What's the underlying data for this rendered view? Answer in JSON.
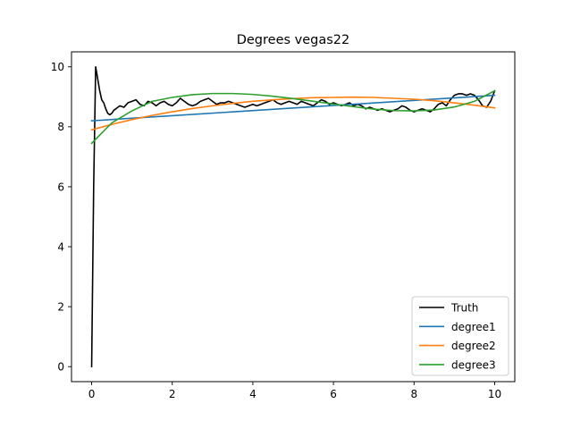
{
  "chart_data": {
    "type": "line",
    "title": "Degrees vegas22",
    "xlabel": "",
    "ylabel": "",
    "xlim": [
      -0.5,
      10.5
    ],
    "ylim": [
      -0.5,
      10.5
    ],
    "xticks": [
      0,
      2,
      4,
      6,
      8,
      10
    ],
    "yticks": [
      0,
      2,
      4,
      6,
      8,
      10
    ],
    "grid": false,
    "legend_position": "lower-right",
    "series": [
      {
        "name": "Truth",
        "color": "#000000",
        "x": [
          0,
          0.05,
          0.1,
          0.15,
          0.2,
          0.25,
          0.3,
          0.35,
          0.4,
          0.45,
          0.5,
          0.55,
          0.6,
          0.7,
          0.8,
          0.9,
          1.0,
          1.1,
          1.2,
          1.3,
          1.4,
          1.5,
          1.6,
          1.7,
          1.8,
          1.9,
          2.0,
          2.1,
          2.2,
          2.3,
          2.4,
          2.5,
          2.6,
          2.7,
          2.8,
          2.9,
          3.0,
          3.1,
          3.2,
          3.3,
          3.4,
          3.5,
          3.6,
          3.7,
          3.8,
          3.9,
          4.0,
          4.1,
          4.2,
          4.3,
          4.4,
          4.5,
          4.6,
          4.7,
          4.8,
          4.9,
          5.0,
          5.1,
          5.2,
          5.3,
          5.4,
          5.5,
          5.6,
          5.7,
          5.8,
          5.9,
          6.0,
          6.1,
          6.2,
          6.3,
          6.4,
          6.5,
          6.6,
          6.7,
          6.8,
          6.9,
          7.0,
          7.1,
          7.2,
          7.3,
          7.4,
          7.5,
          7.6,
          7.7,
          7.8,
          7.9,
          8.0,
          8.1,
          8.2,
          8.3,
          8.4,
          8.5,
          8.6,
          8.7,
          8.8,
          8.9,
          9.0,
          9.1,
          9.2,
          9.3,
          9.4,
          9.5,
          9.6,
          9.7,
          9.8,
          9.9,
          10.0
        ],
        "y": [
          0.0,
          6.0,
          10.0,
          9.6,
          9.2,
          8.9,
          8.8,
          8.6,
          8.45,
          8.4,
          8.45,
          8.55,
          8.6,
          8.7,
          8.65,
          8.8,
          8.85,
          8.9,
          8.75,
          8.7,
          8.85,
          8.8,
          8.7,
          8.8,
          8.85,
          8.75,
          8.7,
          8.8,
          8.95,
          8.85,
          8.75,
          8.7,
          8.75,
          8.85,
          8.9,
          8.95,
          8.85,
          8.75,
          8.8,
          8.8,
          8.85,
          8.8,
          8.75,
          8.7,
          8.65,
          8.7,
          8.75,
          8.7,
          8.75,
          8.8,
          8.85,
          8.9,
          8.8,
          8.75,
          8.8,
          8.85,
          8.8,
          8.75,
          8.85,
          8.8,
          8.75,
          8.7,
          8.8,
          8.9,
          8.85,
          8.75,
          8.8,
          8.75,
          8.7,
          8.75,
          8.8,
          8.7,
          8.75,
          8.7,
          8.6,
          8.65,
          8.6,
          8.55,
          8.6,
          8.55,
          8.5,
          8.55,
          8.6,
          8.7,
          8.65,
          8.55,
          8.5,
          8.55,
          8.6,
          8.55,
          8.5,
          8.6,
          8.75,
          8.8,
          8.7,
          8.9,
          9.05,
          9.1,
          9.1,
          9.05,
          9.1,
          9.05,
          8.9,
          8.7,
          8.65,
          8.85,
          9.2
        ]
      },
      {
        "name": "degree1",
        "color": "#1f77b4",
        "x": [
          0,
          10
        ],
        "y": [
          8.2,
          9.05
        ]
      },
      {
        "name": "degree2",
        "color": "#ff7f0e",
        "x": [
          0,
          0.5,
          1,
          1.5,
          2,
          2.5,
          3,
          3.5,
          4,
          4.5,
          5,
          5.5,
          6,
          6.5,
          7,
          7.5,
          8,
          8.5,
          9,
          9.5,
          10
        ],
        "y": [
          7.9,
          8.08,
          8.24,
          8.38,
          8.5,
          8.61,
          8.7,
          8.78,
          8.85,
          8.9,
          8.94,
          8.97,
          8.98,
          8.99,
          8.98,
          8.95,
          8.92,
          8.87,
          8.8,
          8.72,
          8.63
        ]
      },
      {
        "name": "degree3",
        "color": "#2ca02c",
        "x": [
          0,
          0.5,
          1,
          1.5,
          2,
          2.5,
          3,
          3.5,
          4,
          4.5,
          5,
          5.5,
          6,
          6.5,
          7,
          7.5,
          8,
          8.5,
          9,
          9.5,
          10
        ],
        "y": [
          7.45,
          8.13,
          8.53,
          8.85,
          8.98,
          9.07,
          9.11,
          9.11,
          9.08,
          9.02,
          8.94,
          8.85,
          8.76,
          8.67,
          8.59,
          8.54,
          8.53,
          8.56,
          8.66,
          8.85,
          9.2
        ]
      }
    ]
  }
}
